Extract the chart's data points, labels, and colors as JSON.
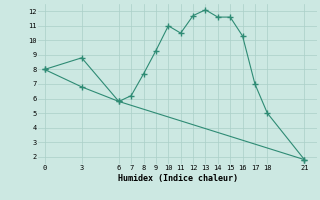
{
  "line1_x": [
    0,
    3,
    6,
    7,
    8,
    9,
    10,
    11,
    12,
    13,
    14,
    15,
    16,
    17,
    18,
    21
  ],
  "line1_y": [
    8.0,
    8.8,
    5.8,
    6.2,
    7.7,
    9.3,
    11.0,
    10.5,
    11.7,
    12.1,
    11.6,
    11.6,
    10.3,
    7.0,
    5.0,
    1.8
  ],
  "line2_x": [
    0,
    3,
    6,
    21
  ],
  "line2_y": [
    8.0,
    6.8,
    5.8,
    1.8
  ],
  "color": "#2e8b74",
  "xlabel": "Humidex (Indice chaleur)",
  "xticks": [
    0,
    3,
    6,
    7,
    8,
    9,
    10,
    11,
    12,
    13,
    14,
    15,
    16,
    17,
    18,
    21
  ],
  "yticks": [
    2,
    3,
    4,
    5,
    6,
    7,
    8,
    9,
    10,
    11,
    12
  ],
  "ylim": [
    1.5,
    12.5
  ],
  "xlim": [
    -0.5,
    22
  ],
  "bg_color": "#cce8e2",
  "grid_color": "#aacfc8"
}
